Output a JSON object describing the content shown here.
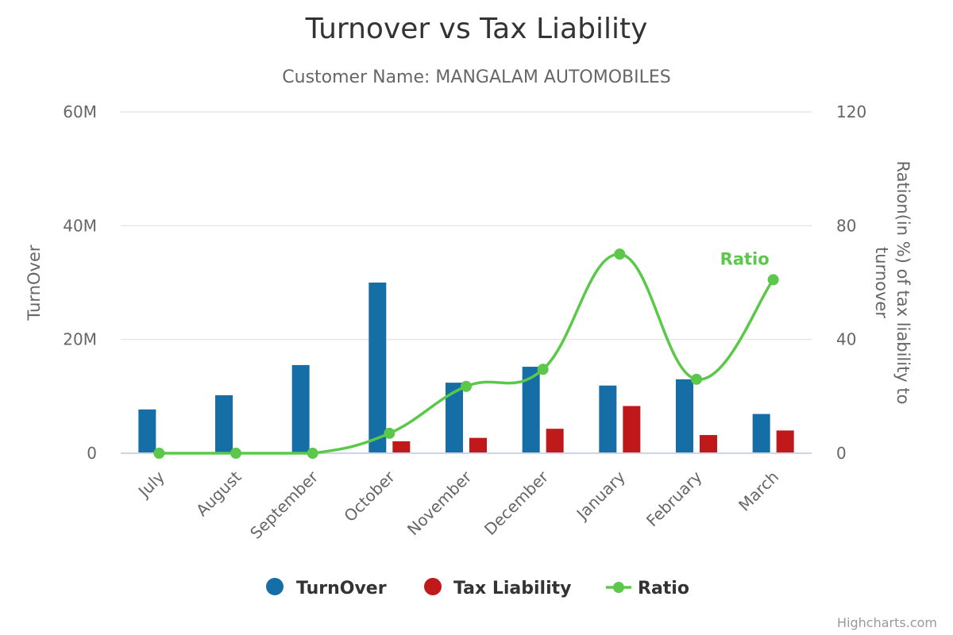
{
  "chart_data": {
    "type": "bar",
    "title": "Turnover vs Tax Liability",
    "subtitle": "Customer Name: MANGALAM AUTOMOBILES",
    "categories": [
      "July",
      "August",
      "September",
      "October",
      "November",
      "December",
      "January",
      "February",
      "March"
    ],
    "y_left": {
      "label": "TurnOver",
      "ylim": [
        0,
        60000000
      ],
      "ticks": [
        0,
        20000000,
        40000000,
        60000000
      ],
      "tick_labels": [
        "0",
        "20M",
        "40M",
        "60M"
      ]
    },
    "y_right": {
      "label": "Ration(in %) of tax liability to turnover",
      "ylim": [
        0,
        120
      ],
      "ticks": [
        0,
        40,
        80,
        120
      ],
      "tick_labels": [
        "0",
        "40",
        "80",
        "120"
      ]
    },
    "series": [
      {
        "name": "TurnOver",
        "type": "bar",
        "axis": "left",
        "color": "#156ea6",
        "values": [
          7700000,
          10200000,
          15500000,
          30000000,
          12400000,
          15200000,
          11900000,
          13000000,
          6900000
        ]
      },
      {
        "name": "Tax Liability",
        "type": "bar",
        "axis": "left",
        "color": "#c0191b",
        "values": [
          0,
          0,
          0,
          2100000,
          2700000,
          4300000,
          8300000,
          3200000,
          4000000
        ]
      },
      {
        "name": "Ratio",
        "type": "line",
        "smooth": true,
        "axis": "right",
        "color": "#5bc84a",
        "values": [
          0,
          0,
          0,
          7,
          23.5,
          29.5,
          70,
          26,
          61
        ]
      }
    ],
    "series_label": "Ratio",
    "legend_position": "bottom",
    "grid": true,
    "credits": "Highcharts.com"
  }
}
